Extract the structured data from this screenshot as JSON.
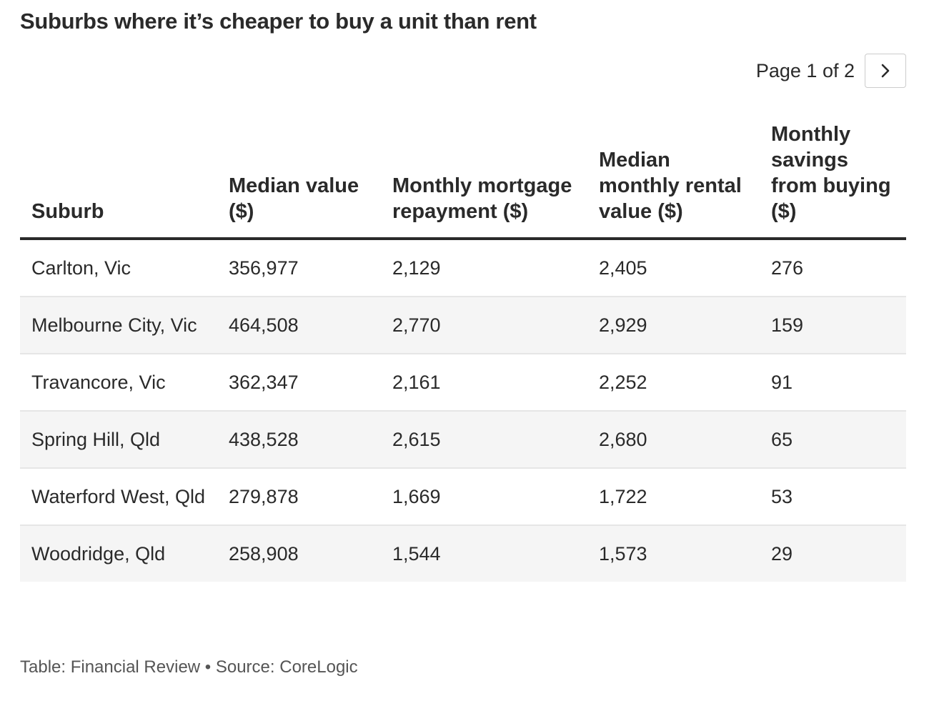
{
  "title": "Suburbs where it’s cheaper to buy a unit than rent",
  "pager": {
    "text": "Page 1 of 2",
    "next_icon": "chevron-right-icon"
  },
  "table": {
    "columns": [
      "Suburb",
      "Median value ($)",
      "Monthly mortgage repayment ($)",
      "Median monthly rental value ($)",
      "Monthly savings from buying ($)"
    ],
    "rows": [
      [
        "Carlton, Vic",
        "356,977",
        "2,129",
        "2,405",
        "276"
      ],
      [
        "Melbourne City, Vic",
        "464,508",
        "2,770",
        "2,929",
        "159"
      ],
      [
        "Travancore, Vic",
        "362,347",
        "2,161",
        "2,252",
        "91"
      ],
      [
        "Spring Hill, Qld",
        "438,528",
        "2,615",
        "2,680",
        "65"
      ],
      [
        "Waterford West, Qld",
        "279,878",
        "1,669",
        "1,722",
        "53"
      ],
      [
        "Woodridge, Qld",
        "258,908",
        "1,544",
        "1,573",
        "29"
      ]
    ]
  },
  "footer": "Table: Financial Review • Source: CoreLogic",
  "colors": {
    "text": "#2a2a2a",
    "header_rule": "#2a2a2a",
    "row_stripe": "#f5f5f5",
    "row_divider": "#e6e6e6"
  }
}
